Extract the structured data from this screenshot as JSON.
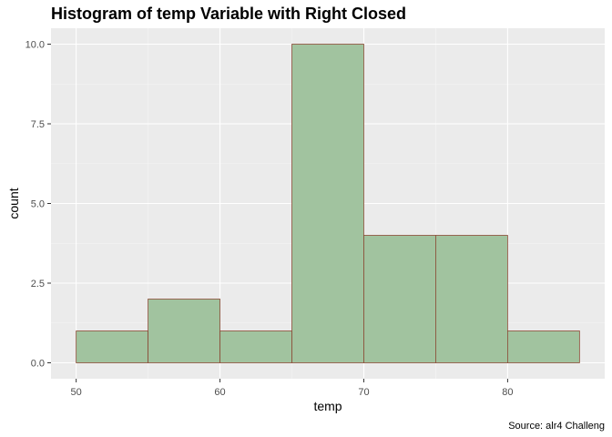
{
  "chart_data": {
    "type": "bar",
    "title": "Histogram of temp Variable with Right Closed",
    "xlabel": "temp",
    "ylabel": "count",
    "caption": "Source: alr4 Challeng",
    "bins": [
      {
        "start": 50,
        "end": 55,
        "count": 1
      },
      {
        "start": 55,
        "end": 60,
        "count": 2
      },
      {
        "start": 60,
        "end": 65,
        "count": 1
      },
      {
        "start": 65,
        "end": 70,
        "count": 10
      },
      {
        "start": 70,
        "end": 75,
        "count": 4
      },
      {
        "start": 75,
        "end": 80,
        "count": 4
      },
      {
        "start": 80,
        "end": 85,
        "count": 1
      }
    ],
    "xlim": [
      48.25,
      86.75
    ],
    "ylim": [
      -0.5,
      10.5
    ],
    "xticks": [
      50,
      60,
      70,
      80
    ],
    "xtick_labels": [
      "50",
      "60",
      "70",
      "80"
    ],
    "yticks": [
      0,
      2.5,
      5,
      7.5,
      10
    ],
    "ytick_labels": [
      "0.0",
      "2.5",
      "5.0",
      "7.5",
      "10.0"
    ],
    "grid": true,
    "colors": {
      "panel_background": "#ebebeb",
      "grid_major": "#ffffff",
      "grid_minor": "#f5f5f5",
      "bar_fill": "#a1c39f",
      "bar_border": "#8b4a35",
      "tick_color": "#333333"
    }
  }
}
